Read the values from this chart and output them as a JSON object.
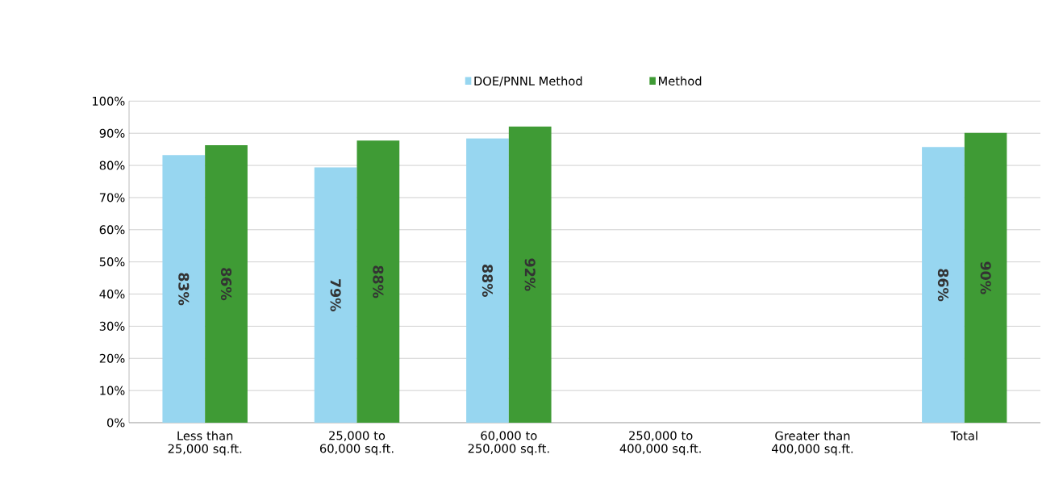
{
  "chart_data": {
    "type": "bar",
    "categories": [
      "Less than 25,000 sq.ft.",
      "25,000 to 60,000 sq.ft.",
      "60,000 to 250,000 sq.ft.",
      "250,000 to 400,000 sq.ft.",
      "Greater than 400,000 sq.ft.",
      "Total"
    ],
    "series": [
      {
        "name": "DOE/PNNL Method",
        "color": "#97d6f0",
        "values": [
          83.2,
          79.4,
          88.4,
          null,
          null,
          85.7
        ],
        "value_labels": [
          "83%",
          "79%",
          "88%",
          null,
          null,
          "86%"
        ]
      },
      {
        "name": "Method",
        "color": "#3f9b35",
        "values": [
          86.3,
          87.7,
          92.1,
          null,
          null,
          90.1
        ],
        "value_labels": [
          "86%",
          "88%",
          "92%",
          null,
          null,
          "90%"
        ]
      }
    ],
    "ylim": [
      0,
      100
    ],
    "yticks": [
      {
        "value": 0,
        "label": "0%"
      },
      {
        "value": 10,
        "label": "10%"
      },
      {
        "value": 20,
        "label": "20%"
      },
      {
        "value": 30,
        "label": "30%"
      },
      {
        "value": 40,
        "label": "40%"
      },
      {
        "value": 50,
        "label": "50%"
      },
      {
        "value": 60,
        "label": "60%"
      },
      {
        "value": 70,
        "label": "70%"
      },
      {
        "value": 80,
        "label": "80%"
      },
      {
        "value": 90,
        "label": "90%"
      },
      {
        "value": 100,
        "label": "100%"
      }
    ],
    "grid": "y",
    "legend": "top"
  }
}
